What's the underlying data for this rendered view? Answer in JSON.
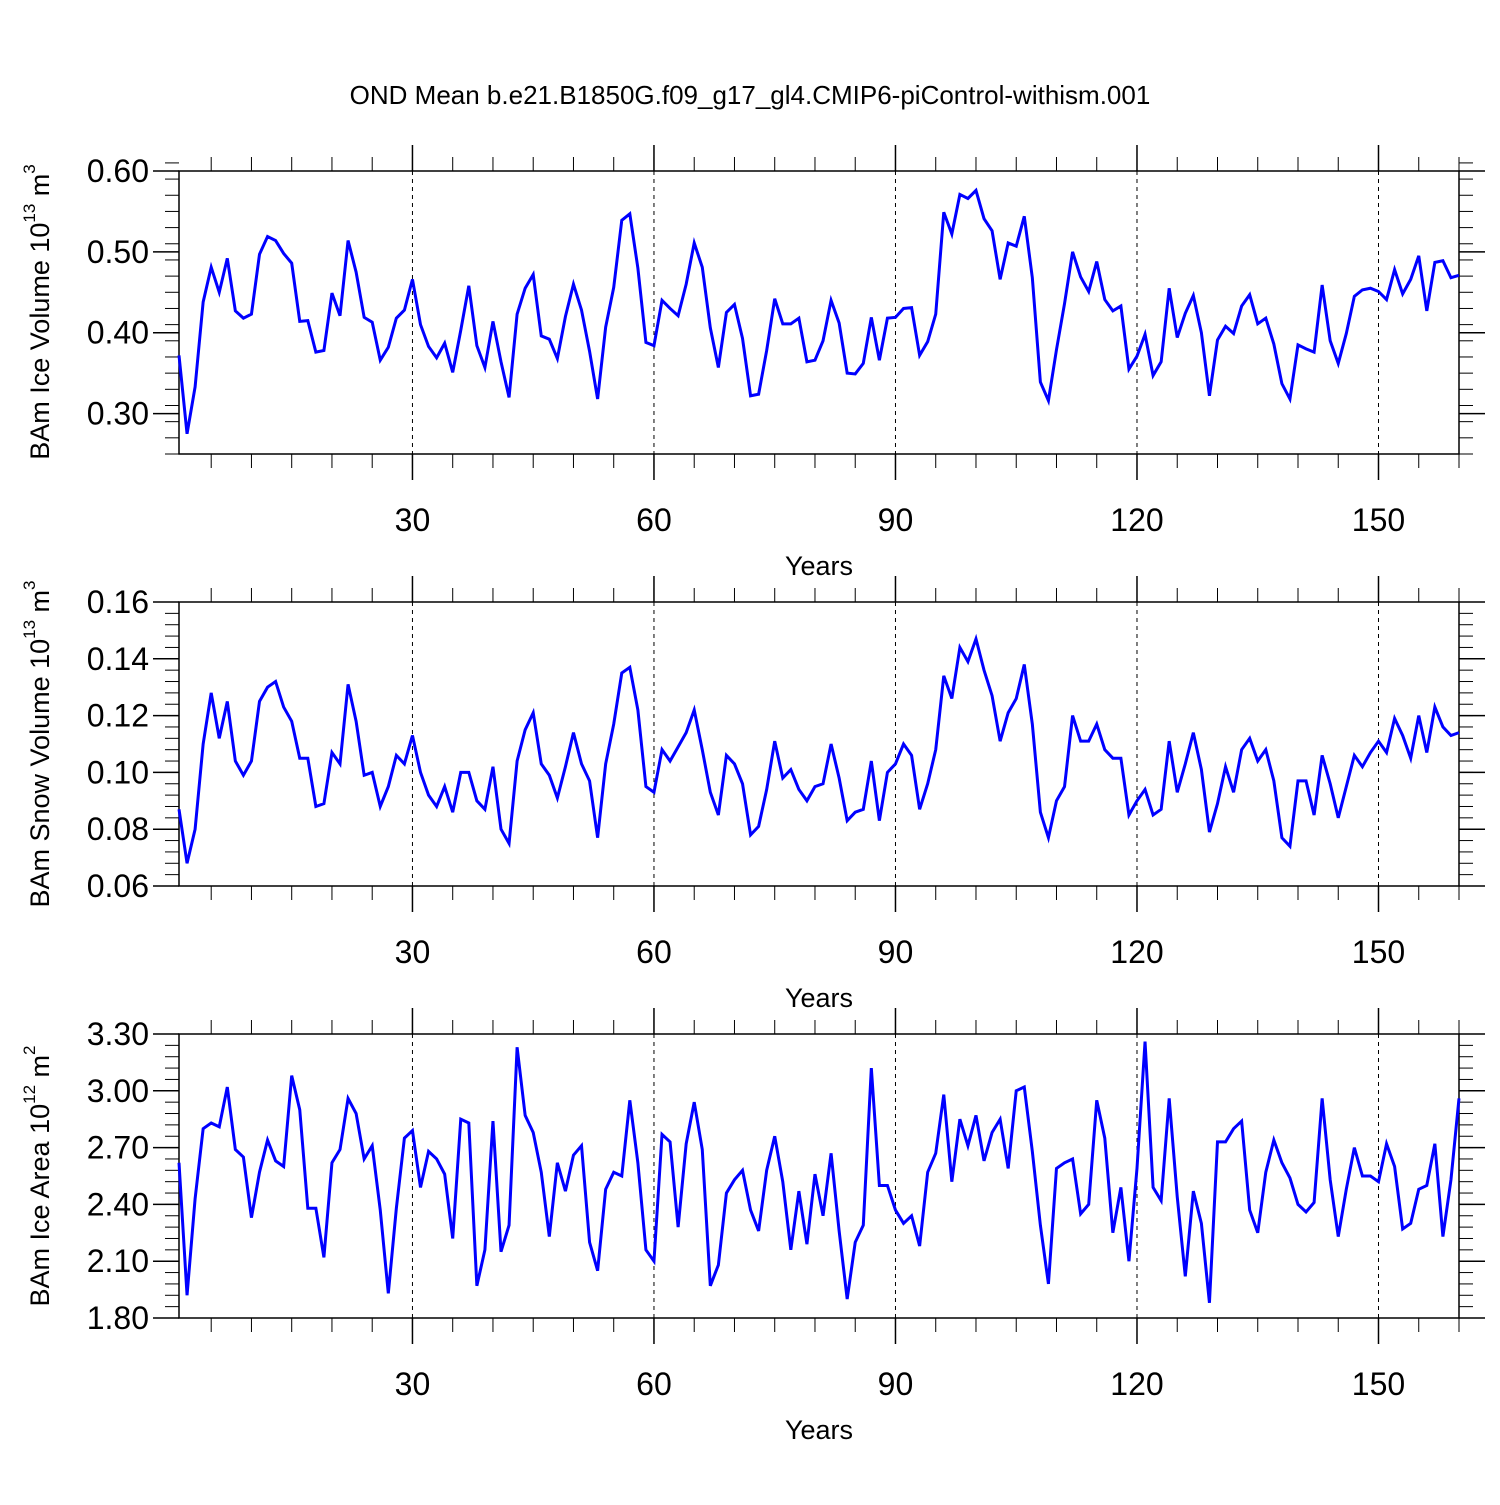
{
  "title": "OND Mean b.e21.B1850G.f09_g17_gl4.CMIP6-piControl-withism.001",
  "colors": {
    "line": "#0000ff",
    "axis": "#000000",
    "grid": "#000000"
  },
  "chart_data": [
    {
      "type": "line",
      "ylabel_main": "BAm Ice Volume 10",
      "ylabel_sup1": "13",
      "ylabel_mid": " m",
      "ylabel_sup2": "3",
      "xlabel": "Years",
      "xlim": [
        1,
        160
      ],
      "ylim": [
        0.25,
        0.6
      ],
      "yticks": [
        0.3,
        0.4,
        0.5,
        0.6
      ],
      "ytick_labels": [
        "0.30",
        "0.40",
        "0.50",
        "0.60"
      ],
      "yminor_step": 0.02,
      "xticks": [
        30,
        60,
        90,
        120,
        150
      ],
      "xtick_labels": [
        "30",
        "60",
        "90",
        "120",
        "150"
      ],
      "xminor_step": 5,
      "vgrid": [
        30,
        60,
        90,
        120,
        150
      ],
      "x_start": 1,
      "values": [
        0.372,
        0.275,
        0.333,
        0.438,
        0.481,
        0.45,
        0.492,
        0.427,
        0.418,
        0.423,
        0.497,
        0.519,
        0.514,
        0.498,
        0.486,
        0.414,
        0.415,
        0.376,
        0.378,
        0.449,
        0.421,
        0.514,
        0.475,
        0.419,
        0.413,
        0.366,
        0.382,
        0.418,
        0.428,
        0.466,
        0.41,
        0.383,
        0.369,
        0.387,
        0.351,
        0.403,
        0.458,
        0.384,
        0.357,
        0.414,
        0.364,
        0.32,
        0.423,
        0.455,
        0.472,
        0.396,
        0.392,
        0.368,
        0.42,
        0.46,
        0.428,
        0.377,
        0.318,
        0.407,
        0.456,
        0.539,
        0.547,
        0.48,
        0.388,
        0.384,
        0.44,
        0.43,
        0.421,
        0.46,
        0.511,
        0.481,
        0.406,
        0.357,
        0.425,
        0.435,
        0.393,
        0.322,
        0.324,
        0.378,
        0.442,
        0.411,
        0.411,
        0.418,
        0.364,
        0.366,
        0.39,
        0.44,
        0.412,
        0.35,
        0.349,
        0.362,
        0.419,
        0.366,
        0.418,
        0.419,
        0.43,
        0.431,
        0.372,
        0.389,
        0.423,
        0.549,
        0.522,
        0.571,
        0.566,
        0.576,
        0.541,
        0.526,
        0.466,
        0.511,
        0.507,
        0.544,
        0.468,
        0.339,
        0.316,
        0.379,
        0.436,
        0.5,
        0.469,
        0.451,
        0.488,
        0.441,
        0.427,
        0.433,
        0.355,
        0.371,
        0.398,
        0.347,
        0.364,
        0.455,
        0.394,
        0.424,
        0.446,
        0.4,
        0.322,
        0.391,
        0.408,
        0.399,
        0.433,
        0.447,
        0.411,
        0.418,
        0.386,
        0.337,
        0.318,
        0.385,
        0.38,
        0.376,
        0.459,
        0.39,
        0.362,
        0.399,
        0.445,
        0.453,
        0.455,
        0.451,
        0.441,
        0.478,
        0.448,
        0.466,
        0.495,
        0.427,
        0.487,
        0.489,
        0.468,
        0.471
      ]
    },
    {
      "type": "line",
      "ylabel_main": "BAm Snow Volume 10",
      "ylabel_sup1": "13",
      "ylabel_mid": " m",
      "ylabel_sup2": "3",
      "xlabel": "Years",
      "xlim": [
        1,
        160
      ],
      "ylim": [
        0.06,
        0.16
      ],
      "yticks": [
        0.06,
        0.08,
        0.1,
        0.12,
        0.14,
        0.16
      ],
      "ytick_labels": [
        "0.06",
        "0.08",
        "0.10",
        "0.12",
        "0.14",
        "0.16"
      ],
      "yminor_step": 0.004,
      "xticks": [
        30,
        60,
        90,
        120,
        150
      ],
      "xtick_labels": [
        "30",
        "60",
        "90",
        "120",
        "150"
      ],
      "xminor_step": 5,
      "vgrid": [
        30,
        60,
        90,
        120,
        150
      ],
      "x_start": 1,
      "values": [
        0.087,
        0.068,
        0.08,
        0.11,
        0.128,
        0.112,
        0.125,
        0.104,
        0.099,
        0.104,
        0.125,
        0.13,
        0.132,
        0.123,
        0.118,
        0.105,
        0.105,
        0.088,
        0.089,
        0.107,
        0.103,
        0.131,
        0.118,
        0.099,
        0.1,
        0.088,
        0.095,
        0.106,
        0.103,
        0.113,
        0.1,
        0.092,
        0.088,
        0.095,
        0.086,
        0.1,
        0.1,
        0.09,
        0.087,
        0.102,
        0.08,
        0.075,
        0.104,
        0.115,
        0.121,
        0.103,
        0.099,
        0.091,
        0.102,
        0.114,
        0.103,
        0.097,
        0.077,
        0.103,
        0.117,
        0.135,
        0.137,
        0.122,
        0.095,
        0.093,
        0.108,
        0.104,
        0.109,
        0.114,
        0.122,
        0.108,
        0.093,
        0.085,
        0.106,
        0.103,
        0.096,
        0.078,
        0.081,
        0.094,
        0.111,
        0.098,
        0.101,
        0.094,
        0.09,
        0.095,
        0.096,
        0.11,
        0.098,
        0.083,
        0.086,
        0.087,
        0.104,
        0.083,
        0.1,
        0.103,
        0.11,
        0.106,
        0.087,
        0.096,
        0.108,
        0.134,
        0.126,
        0.144,
        0.139,
        0.147,
        0.136,
        0.127,
        0.111,
        0.121,
        0.126,
        0.138,
        0.117,
        0.086,
        0.077,
        0.09,
        0.095,
        0.12,
        0.111,
        0.111,
        0.117,
        0.108,
        0.105,
        0.105,
        0.085,
        0.09,
        0.094,
        0.085,
        0.087,
        0.111,
        0.093,
        0.103,
        0.114,
        0.101,
        0.079,
        0.089,
        0.102,
        0.093,
        0.108,
        0.112,
        0.104,
        0.108,
        0.097,
        0.077,
        0.074,
        0.097,
        0.097,
        0.085,
        0.106,
        0.096,
        0.084,
        0.095,
        0.106,
        0.102,
        0.107,
        0.111,
        0.107,
        0.119,
        0.113,
        0.105,
        0.12,
        0.107,
        0.123,
        0.116,
        0.113,
        0.114
      ]
    },
    {
      "type": "line",
      "ylabel_main": "BAm Ice Area 10",
      "ylabel_sup1": "12",
      "ylabel_mid": " m",
      "ylabel_sup2": "2",
      "xlabel": "Years",
      "xlim": [
        1,
        160
      ],
      "ylim": [
        1.8,
        3.3
      ],
      "yticks": [
        1.8,
        2.1,
        2.4,
        2.7,
        3.0,
        3.3
      ],
      "ytick_labels": [
        "1.80",
        "2.10",
        "2.40",
        "2.70",
        "3.00",
        "3.30"
      ],
      "yminor_step": 0.06,
      "xticks": [
        30,
        60,
        90,
        120,
        150
      ],
      "xtick_labels": [
        "30",
        "60",
        "90",
        "120",
        "150"
      ],
      "xminor_step": 5,
      "vgrid": [
        30,
        60,
        90,
        120,
        150
      ],
      "x_start": 1,
      "values": [
        2.62,
        1.92,
        2.43,
        2.8,
        2.83,
        2.81,
        3.02,
        2.69,
        2.65,
        2.33,
        2.57,
        2.74,
        2.63,
        2.6,
        3.08,
        2.9,
        2.38,
        2.38,
        2.12,
        2.62,
        2.69,
        2.96,
        2.88,
        2.64,
        2.71,
        2.37,
        1.93,
        2.38,
        2.75,
        2.79,
        2.49,
        2.68,
        2.64,
        2.56,
        2.22,
        2.85,
        2.83,
        1.97,
        2.16,
        2.84,
        2.15,
        2.29,
        3.23,
        2.87,
        2.78,
        2.57,
        2.23,
        2.62,
        2.47,
        2.66,
        2.71,
        2.2,
        2.05,
        2.48,
        2.57,
        2.55,
        2.95,
        2.62,
        2.16,
        2.1,
        2.77,
        2.73,
        2.28,
        2.72,
        2.94,
        2.69,
        1.97,
        2.08,
        2.46,
        2.53,
        2.58,
        2.37,
        2.26,
        2.58,
        2.76,
        2.52,
        2.16,
        2.47,
        2.19,
        2.56,
        2.34,
        2.67,
        2.26,
        1.9,
        2.2,
        2.29,
        3.12,
        2.5,
        2.5,
        2.37,
        2.3,
        2.34,
        2.18,
        2.57,
        2.67,
        2.98,
        2.52,
        2.85,
        2.71,
        2.87,
        2.63,
        2.78,
        2.85,
        2.59,
        3.0,
        3.02,
        2.68,
        2.29,
        1.98,
        2.59,
        2.62,
        2.64,
        2.35,
        2.4,
        2.95,
        2.75,
        2.25,
        2.49,
        2.1,
        2.59,
        3.26,
        2.49,
        2.42,
        2.96,
        2.44,
        2.02,
        2.47,
        2.3,
        1.88,
        2.73,
        2.73,
        2.8,
        2.84,
        2.37,
        2.25,
        2.57,
        2.74,
        2.62,
        2.54,
        2.4,
        2.36,
        2.41,
        2.96,
        2.53,
        2.23,
        2.48,
        2.7,
        2.55,
        2.55,
        2.52,
        2.72,
        2.6,
        2.27,
        2.3,
        2.48,
        2.5,
        2.72,
        2.23,
        2.53,
        2.96
      ]
    }
  ]
}
